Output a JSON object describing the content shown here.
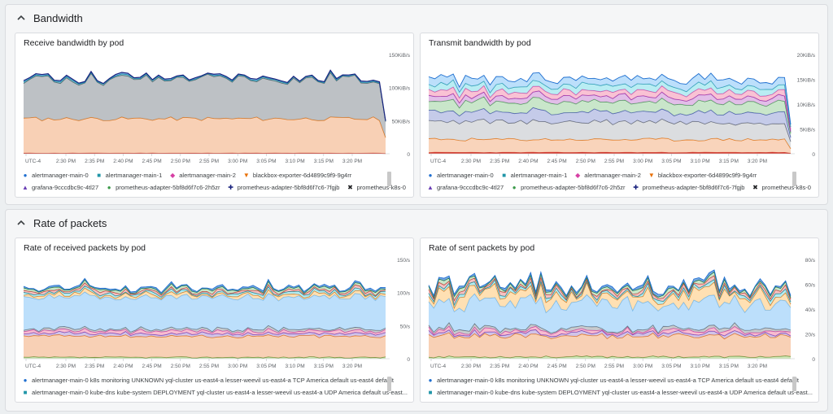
{
  "sections": [
    {
      "title": "Bandwidth",
      "panels": [
        {
          "title": "Receive bandwidth by pod",
          "chart_data": {
            "type": "area",
            "stacked": true,
            "x_tick_labels": [
              "UTC-4",
              "2:30 PM",
              "2:35 PM",
              "2:40 PM",
              "2:45 PM",
              "2:50 PM",
              "2:55 PM",
              "3:00 PM",
              "3:05 PM",
              "3:10 PM",
              "3:15 PM",
              "3:20 PM"
            ],
            "y_tick_labels": [
              "150KiB/s",
              "100KiB/s",
              "50KiB/s",
              "0"
            ],
            "ylim": [
              0,
              150
            ],
            "y_unit": "KiB/s",
            "series": [
              {
                "name": "alertmanager-main-0",
                "color": "#1f6fd0",
                "marker": "●",
                "values_base": 0.3
              },
              {
                "name": "alertmanager-main-1",
                "color": "#2196a8",
                "marker": "■",
                "values_base": 0.3
              },
              {
                "name": "alertmanager-main-2",
                "color": "#d63fa4",
                "marker": "◆",
                "values_base": 0.3
              },
              {
                "name": "blackbox-exporter-6d4899c9f9-9g4rr",
                "color": "#e8710a",
                "marker": "▼",
                "values_base": 52
              },
              {
                "name": "grafana-9cccdbc9c-4tl27",
                "color": "#6a3fb5",
                "marker": "▲",
                "values_base": 0.3
              },
              {
                "name": "prometheus-adapter-5bf8d6f7c6-2h5zr",
                "color": "#3c9a4a",
                "marker": "●",
                "values_base": 0.5
              },
              {
                "name": "prometheus-adapter-5bf8d6f7c6-7fgjb",
                "color": "#1a237e",
                "marker": "✚",
                "values_base": 0.5
              },
              {
                "name": "prometheus-k8s-0",
                "color": "#202124",
                "marker": "✖",
                "values_base": 60
              }
            ]
          }
        },
        {
          "title": "Transmit bandwidth by pod",
          "chart_data": {
            "type": "area",
            "stacked": true,
            "x_tick_labels": [
              "UTC-4",
              "2:30 PM",
              "2:35 PM",
              "2:40 PM",
              "2:45 PM",
              "2:50 PM",
              "2:55 PM",
              "3:00 PM",
              "3:05 PM",
              "3:10 PM",
              "3:15 PM",
              "3:20 PM"
            ],
            "y_tick_labels": [
              "20KiB/s",
              "15KiB/s",
              "10KiB/s",
              "5KiB/s",
              "0"
            ],
            "ylim": [
              0,
              20
            ],
            "y_unit": "KiB/s",
            "series": [
              {
                "name": "alertmanager-main-0",
                "color": "#1f6fd0",
                "marker": "●",
                "values_base": 1.8
              },
              {
                "name": "alertmanager-main-1",
                "color": "#2196a8",
                "marker": "■",
                "values_base": 1.8
              },
              {
                "name": "alertmanager-main-2",
                "color": "#d63fa4",
                "marker": "◆",
                "values_base": 1.8
              },
              {
                "name": "blackbox-exporter-6d4899c9f9-9g4rr",
                "color": "#e8710a",
                "marker": "▼",
                "values_base": 3.0
              },
              {
                "name": "grafana-9cccdbc9c-4tl27",
                "color": "#6a3fb5",
                "marker": "▲",
                "values_base": 2.0
              },
              {
                "name": "prometheus-adapter-5bf8d6f7c6-2h5zr",
                "color": "#3c9a4a",
                "marker": "●",
                "values_base": 2.0
              },
              {
                "name": "prometheus-adapter-5bf8d6f7c6-7fgjb",
                "color": "#1a237e",
                "marker": "✚",
                "values_base": 1.0
              },
              {
                "name": "prometheus-k8s-0",
                "color": "#202124",
                "marker": "✖",
                "values_base": 4.0
              }
            ]
          }
        }
      ]
    },
    {
      "title": "Rate of packets",
      "panels": [
        {
          "title": "Rate of received packets by pod",
          "chart_data": {
            "type": "area",
            "stacked": true,
            "x_tick_labels": [
              "UTC-4",
              "2:30 PM",
              "2:35 PM",
              "2:40 PM",
              "2:45 PM",
              "2:50 PM",
              "2:55 PM",
              "3:00 PM",
              "3:05 PM",
              "3:10 PM",
              "3:15 PM",
              "3:20 PM"
            ],
            "y_tick_labels": [
              "150/s",
              "100/s",
              "50/s",
              "0"
            ],
            "ylim": [
              0,
              150
            ],
            "y_unit": "/s",
            "series": [
              {
                "name": "alertmanager-main-0 k8s monitoring UNKNOWN yql-cluster us-east4-a lesser-weevil us-east4-a TCP America default us-east4 default",
                "color": "#1f6fd0",
                "marker": "●"
              },
              {
                "name": "alertmanager-main-0 kube-dns kube-system DEPLOYMENT yql-cluster us-east4-a lesser-weevil us-east4-a UDP America default us-east4 default",
                "color": "#2196a8",
                "marker": "■"
              }
            ]
          }
        },
        {
          "title": "Rate of sent packets by pod",
          "chart_data": {
            "type": "area",
            "stacked": true,
            "x_tick_labels": [
              "UTC-4",
              "2:30 PM",
              "2:35 PM",
              "2:40 PM",
              "2:45 PM",
              "2:50 PM",
              "2:55 PM",
              "3:00 PM",
              "3:05 PM",
              "3:10 PM",
              "3:15 PM",
              "3:20 PM"
            ],
            "y_tick_labels": [
              "80/s",
              "60/s",
              "40/s",
              "20/s",
              "0"
            ],
            "ylim": [
              0,
              80
            ],
            "y_unit": "/s",
            "series": [
              {
                "name": "alertmanager-main-0 k8s monitoring UNKNOWN yql-cluster us-east4-a lesser-weevil us-east4-a TCP America default us-east4 default",
                "color": "#1f6fd0",
                "marker": "●"
              },
              {
                "name": "alertmanager-main-0 kube-dns kube-system DEPLOYMENT yql-cluster us-east4-a lesser-weevil us-east4-a UDP America default us-east4 default",
                "color": "#2196a8",
                "marker": "■"
              }
            ]
          }
        }
      ]
    }
  ],
  "legend_display": {
    "bw_rx_row1": [
      "alertmanager-main-0",
      "alertmanager-main-1",
      "alertmanager-main-2",
      "blackbox-exporter-6d4899c9f9-9g4rr"
    ],
    "bw_rx_row2": [
      "grafana-9cccdbc9c-4tl27",
      "prometheus-adapter-5bf8d6f7c6-2h5zr",
      "prometheus-adapter-5bf8d6f7c6-7fgjb",
      "prometheus-k8s-0"
    ],
    "pk_line1": "alertmanager-main-0 k8s monitoring UNKNOWN yql-cluster us-east4-a lesser-weevil us-east4-a TCP America default us-east4 default",
    "pk_line2_rx": "alertmanager-main-0 kube-dns kube-system DEPLOYMENT yql-cluster us-east4-a lesser-weevil us-east4-a UDP America default us-east...",
    "pk_line2_tx": "alertmanager-main-0 kube-dns kube-system DEPLOYMENT yql-cluster us-east4-a lesser-weevil us-east4-a UDP America default us-east..."
  }
}
